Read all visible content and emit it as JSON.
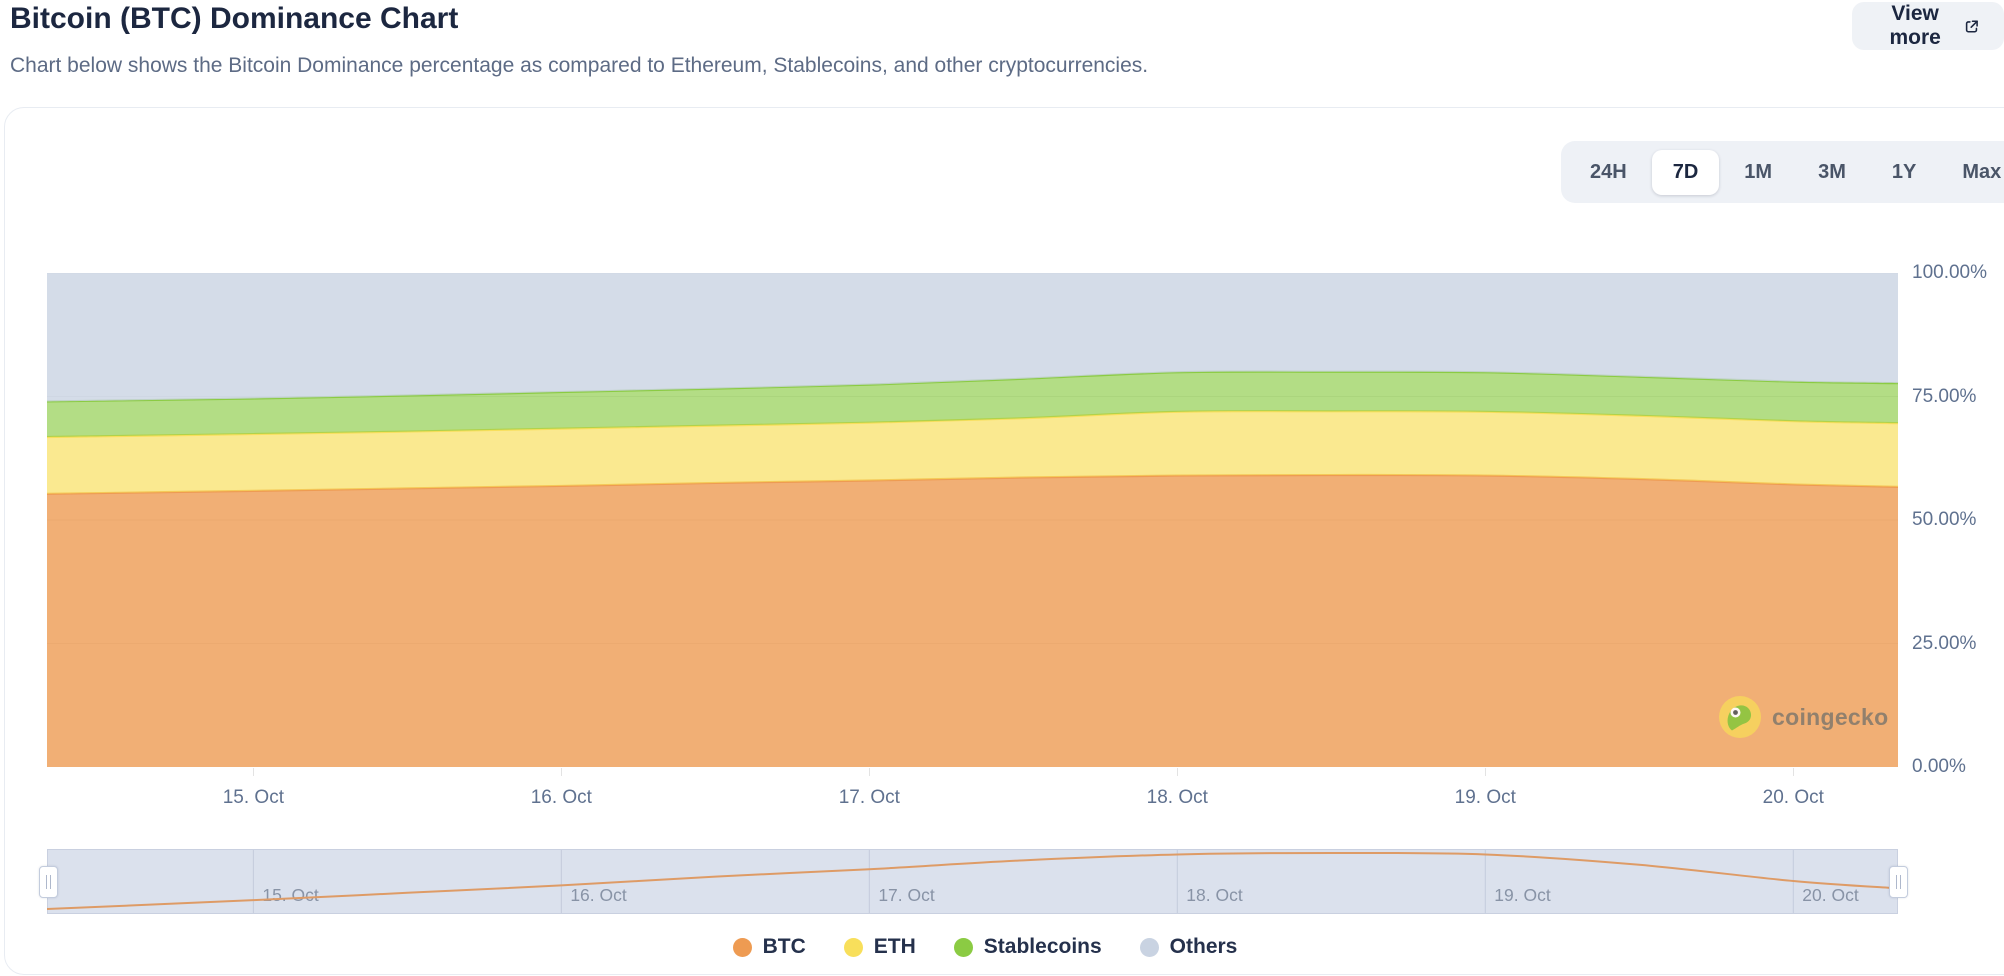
{
  "header": {
    "title": "Bitcoin (BTC) Dominance Chart",
    "subtitle": "Chart below shows the Bitcoin Dominance percentage as compared to Ethereum, Stablecoins, and other cryptocurrencies.",
    "view_more_label": "View more"
  },
  "toolbar": {
    "ranges": [
      "24H",
      "7D",
      "1M",
      "3M",
      "1Y",
      "Max"
    ],
    "selected_range": "7D"
  },
  "watermark": {
    "text": "coingecko"
  },
  "colors": {
    "btc": "#EE9B52",
    "eth": "#F8DF5B",
    "stablecoins": "#8BCB43",
    "others": "#C9D3E2",
    "navigator_line": "#DE9B66",
    "navigator_bg": "#DBE1ED"
  },
  "chart_data": {
    "type": "area",
    "stacking": "percent",
    "title": "Bitcoin (BTC) Dominance Chart",
    "xlabel": "",
    "ylabel": "",
    "ylim": [
      0,
      100
    ],
    "grid": true,
    "legend_position": "bottom",
    "y_tick_labels": [
      "100.00%",
      "75.00%",
      "50.00%",
      "25.00%",
      "0.00%"
    ],
    "y_tick_values": [
      100,
      75,
      50,
      25,
      0
    ],
    "x_tick_labels": [
      "15. Oct",
      "16. Oct",
      "17. Oct",
      "18. Oct",
      "19. Oct",
      "20. Oct"
    ],
    "x_tick_days": [
      15,
      16,
      17,
      18,
      19,
      20
    ],
    "x_domain_days": [
      14.33,
      20.34
    ],
    "sample_days": [
      14.33,
      15,
      15.5,
      16,
      16.5,
      17,
      17.5,
      18,
      18.5,
      19,
      19.5,
      20,
      20.34
    ],
    "series": [
      {
        "name": "BTC",
        "color": "#EE9B52",
        "values": [
          55.3,
          55.9,
          56.4,
          56.9,
          57.5,
          58.0,
          58.6,
          59.0,
          59.1,
          59.0,
          58.3,
          57.2,
          56.7
        ]
      },
      {
        "name": "ETH",
        "color": "#F8DF5B",
        "values": [
          11.5,
          11.5,
          11.5,
          11.6,
          11.6,
          11.7,
          12.0,
          12.9,
          12.9,
          12.9,
          12.8,
          12.8,
          12.9
        ]
      },
      {
        "name": "Stablecoins",
        "color": "#8BCB43",
        "values": [
          7.2,
          7.2,
          7.3,
          7.4,
          7.5,
          7.7,
          8.0,
          8.0,
          8.0,
          8.0,
          7.9,
          8.0,
          8.1
        ]
      },
      {
        "name": "Others",
        "color": "#C9D3E2",
        "values": [
          26.0,
          25.4,
          24.8,
          24.1,
          23.4,
          22.6,
          21.4,
          20.1,
          20.0,
          20.1,
          21.0,
          22.0,
          22.3
        ]
      }
    ],
    "navigator": {
      "series": "BTC",
      "values": [
        55.3,
        55.9,
        56.4,
        56.9,
        57.5,
        58.0,
        58.6,
        59.0,
        59.1,
        59.0,
        58.3,
        57.2,
        56.7
      ]
    }
  }
}
